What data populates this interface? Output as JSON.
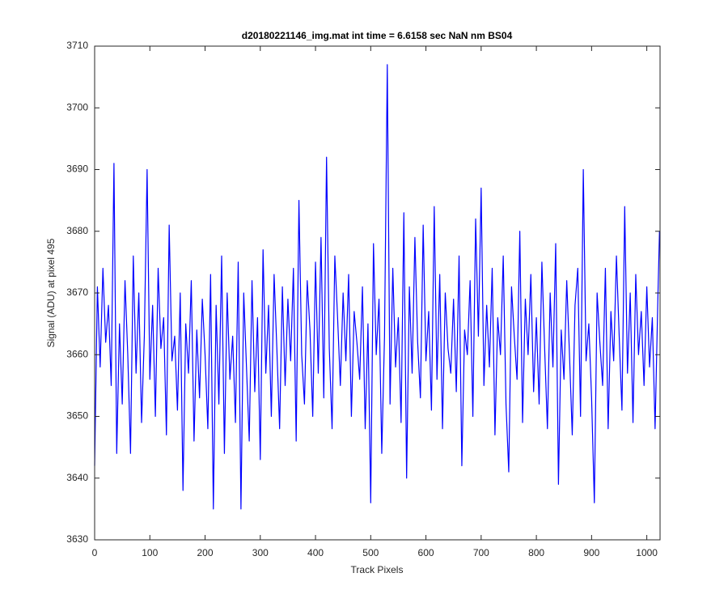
{
  "chart_data": {
    "type": "line",
    "title": "d20180221146_img.mat int time = 6.6158 sec  NaN nm BS04",
    "x_label": "Track Pixels",
    "y_label": "Signal (ADU) at pixel 495",
    "color": "#0000ff",
    "xlim": [
      0,
      1024
    ],
    "ylim": [
      3630,
      3710
    ],
    "xticks": [
      0,
      100,
      200,
      300,
      400,
      500,
      600,
      700,
      800,
      900,
      1000
    ],
    "yticks": [
      3630,
      3640,
      3650,
      3660,
      3670,
      3680,
      3690,
      3700,
      3710
    ],
    "x": [
      0,
      5,
      10,
      15,
      20,
      25,
      30,
      35,
      40,
      45,
      50,
      55,
      60,
      65,
      70,
      75,
      80,
      85,
      90,
      95,
      100,
      105,
      110,
      115,
      120,
      125,
      130,
      135,
      140,
      145,
      150,
      155,
      160,
      165,
      170,
      175,
      180,
      185,
      190,
      195,
      200,
      205,
      210,
      215,
      220,
      225,
      230,
      235,
      240,
      245,
      250,
      255,
      260,
      265,
      270,
      275,
      280,
      285,
      290,
      295,
      300,
      305,
      310,
      315,
      320,
      325,
      330,
      335,
      340,
      345,
      350,
      355,
      360,
      365,
      370,
      375,
      380,
      385,
      390,
      395,
      400,
      405,
      410,
      415,
      420,
      425,
      430,
      435,
      440,
      445,
      450,
      455,
      460,
      465,
      470,
      475,
      480,
      485,
      490,
      495,
      500,
      505,
      510,
      515,
      520,
      525,
      530,
      535,
      540,
      545,
      550,
      555,
      560,
      565,
      570,
      575,
      580,
      585,
      590,
      595,
      600,
      605,
      610,
      615,
      620,
      625,
      630,
      635,
      640,
      645,
      650,
      655,
      660,
      665,
      670,
      675,
      680,
      685,
      690,
      695,
      700,
      705,
      710,
      715,
      720,
      725,
      730,
      735,
      740,
      745,
      750,
      755,
      760,
      765,
      770,
      775,
      780,
      785,
      790,
      795,
      800,
      805,
      810,
      815,
      820,
      825,
      830,
      835,
      840,
      845,
      850,
      855,
      860,
      865,
      870,
      875,
      880,
      885,
      890,
      895,
      900,
      905,
      910,
      915,
      920,
      925,
      930,
      935,
      940,
      945,
      950,
      955,
      960,
      965,
      970,
      975,
      980,
      985,
      990,
      995,
      1000,
      1005,
      1010,
      1015,
      1020,
      1023
    ],
    "values": [
      3642,
      3671,
      3658,
      3674,
      3662,
      3668,
      3655,
      3691,
      3644,
      3665,
      3652,
      3672,
      3660,
      3644,
      3676,
      3657,
      3670,
      3649,
      3663,
      3690,
      3656,
      3668,
      3650,
      3674,
      3661,
      3666,
      3647,
      3681,
      3659,
      3663,
      3651,
      3670,
      3638,
      3665,
      3657,
      3672,
      3646,
      3664,
      3653,
      3669,
      3660,
      3648,
      3673,
      3635,
      3668,
      3652,
      3676,
      3644,
      3670,
      3656,
      3663,
      3649,
      3675,
      3635,
      3670,
      3658,
      3646,
      3672,
      3654,
      3666,
      3643,
      3677,
      3657,
      3668,
      3650,
      3673,
      3661,
      3648,
      3671,
      3655,
      3669,
      3659,
      3674,
      3646,
      3685,
      3660,
      3652,
      3672,
      3664,
      3650,
      3675,
      3657,
      3679,
      3653,
      3692,
      3661,
      3648,
      3676,
      3666,
      3655,
      3670,
      3659,
      3673,
      3650,
      3667,
      3662,
      3656,
      3671,
      3648,
      3665,
      3636,
      3678,
      3660,
      3669,
      3644,
      3663,
      3707,
      3652,
      3674,
      3658,
      3666,
      3649,
      3683,
      3640,
      3671,
      3657,
      3679,
      3662,
      3653,
      3681,
      3659,
      3667,
      3651,
      3684,
      3656,
      3673,
      3648,
      3670,
      3661,
      3657,
      3669,
      3654,
      3676,
      3642,
      3664,
      3660,
      3672,
      3650,
      3682,
      3663,
      3687,
      3655,
      3668,
      3658,
      3674,
      3647,
      3666,
      3660,
      3676,
      3652,
      3641,
      3671,
      3663,
      3656,
      3680,
      3649,
      3669,
      3660,
      3673,
      3654,
      3666,
      3652,
      3675,
      3661,
      3648,
      3670,
      3658,
      3678,
      3639,
      3664,
      3656,
      3672,
      3660,
      3647,
      3668,
      3674,
      3650,
      3690,
      3659,
      3665,
      3653,
      3636,
      3670,
      3662,
      3655,
      3674,
      3648,
      3667,
      3659,
      3676,
      3663,
      3651,
      3684,
      3657,
      3670,
      3649,
      3673,
      3660,
      3667,
      3655,
      3671,
      3658,
      3666,
      3648,
      3669,
      3680
    ]
  }
}
